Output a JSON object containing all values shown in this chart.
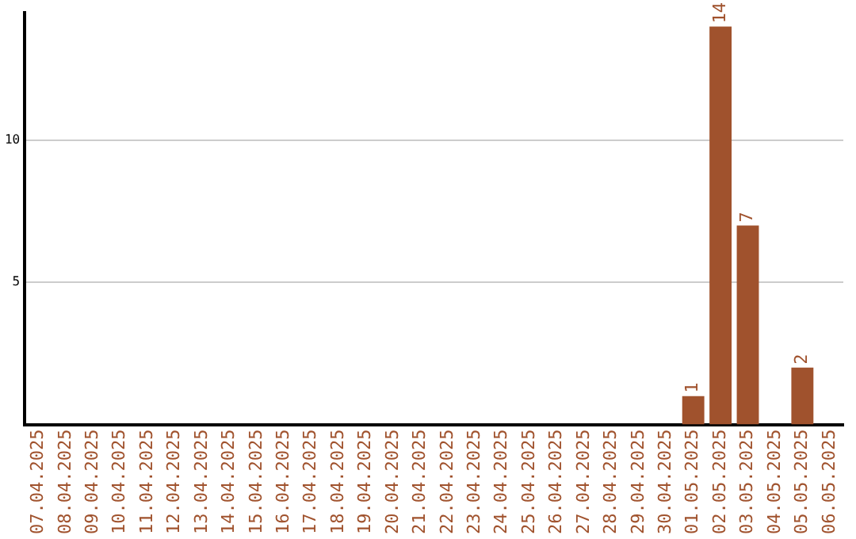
{
  "chart_data": {
    "type": "bar",
    "categories": [
      "07.04.2025",
      "08.04.2025",
      "09.04.2025",
      "10.04.2025",
      "11.04.2025",
      "12.04.2025",
      "13.04.2025",
      "14.04.2025",
      "15.04.2025",
      "16.04.2025",
      "17.04.2025",
      "18.04.2025",
      "19.04.2025",
      "20.04.2025",
      "21.04.2025",
      "22.04.2025",
      "23.04.2025",
      "24.04.2025",
      "25.04.2025",
      "26.04.2025",
      "27.04.2025",
      "28.04.2025",
      "29.04.2025",
      "30.04.2025",
      "01.05.2025",
      "02.05.2025",
      "03.05.2025",
      "04.05.2025",
      "05.05.2025",
      "06.05.2025"
    ],
    "values": [
      0,
      0,
      0,
      0,
      0,
      0,
      0,
      0,
      0,
      0,
      0,
      0,
      0,
      0,
      0,
      0,
      0,
      0,
      0,
      0,
      0,
      0,
      0,
      0,
      1,
      14,
      7,
      0,
      2,
      0
    ],
    "value_labels": [
      null,
      null,
      null,
      null,
      null,
      null,
      null,
      null,
      null,
      null,
      null,
      null,
      null,
      null,
      null,
      null,
      null,
      null,
      null,
      null,
      null,
      null,
      null,
      null,
      "1",
      "14",
      "7",
      null,
      "2",
      null
    ],
    "color": "#a0522d",
    "ylim": [
      0,
      14.5
    ],
    "yticks": [
      5,
      10
    ],
    "grid": "y"
  }
}
